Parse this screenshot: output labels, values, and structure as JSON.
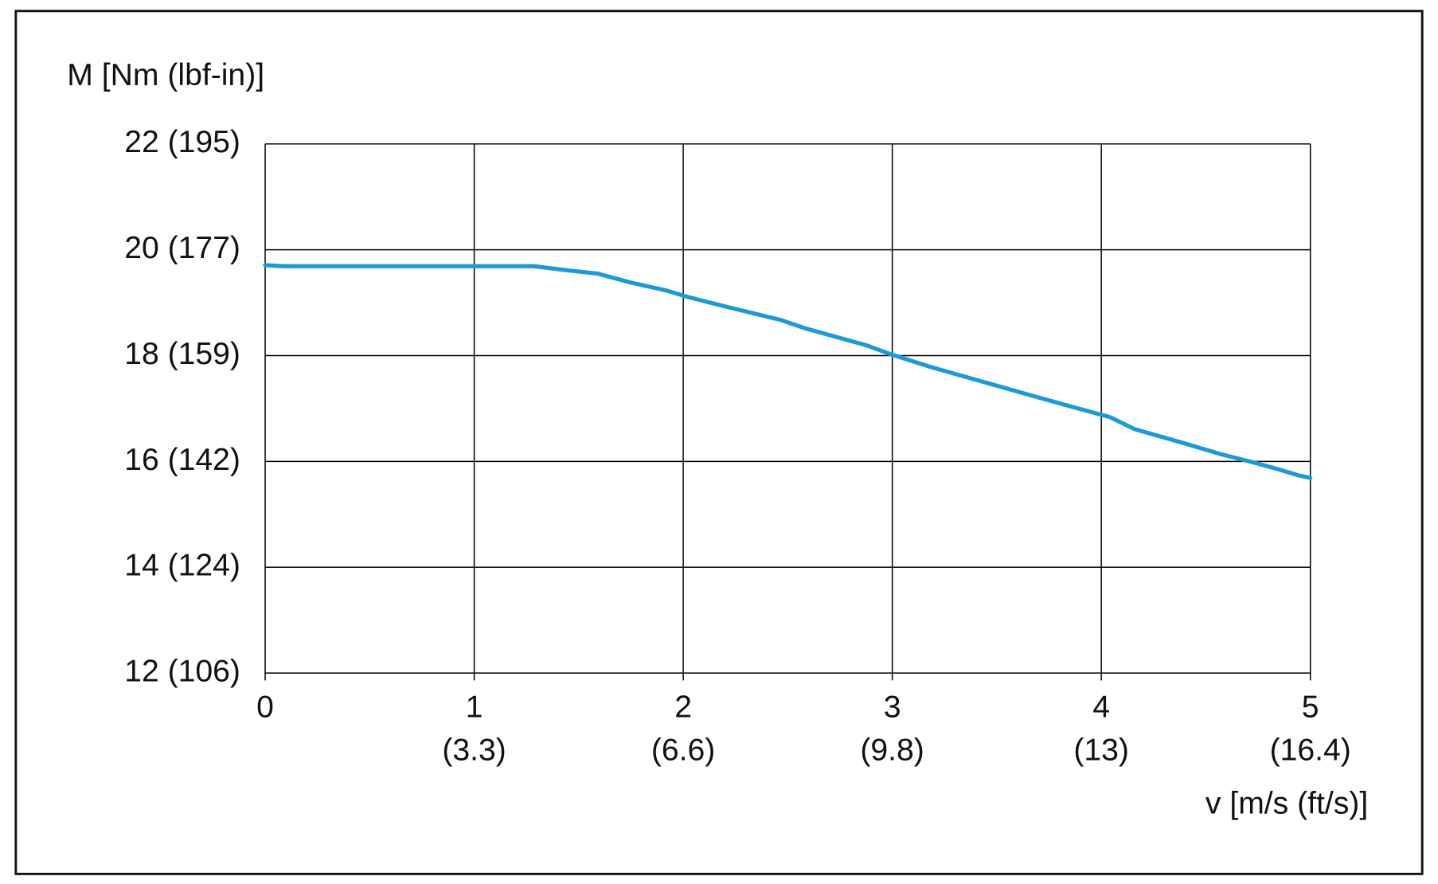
{
  "chart_data": {
    "type": "line",
    "y_label": "M [Nm (lbf-in)]",
    "x_label": "v [m/s (ft/s)]",
    "x": [
      0,
      0.09,
      1.285,
      1.43,
      1.59,
      1.75,
      1.92,
      2.02,
      2.2,
      2.47,
      2.58,
      2.88,
      2.99,
      3.18,
      3.43,
      3.69,
      3.88,
      4.04,
      4.16,
      4.39,
      4.57,
      4.72,
      4.83,
      4.95,
      5.0
    ],
    "values": [
      19.71,
      19.69,
      19.69,
      19.62,
      19.55,
      19.38,
      19.23,
      19.11,
      18.93,
      18.67,
      18.52,
      18.19,
      18.03,
      17.79,
      17.51,
      17.22,
      17.01,
      16.84,
      16.61,
      16.35,
      16.14,
      15.99,
      15.87,
      15.73,
      15.69
    ],
    "color": "#1b9ad6",
    "xlim": [
      0,
      5
    ],
    "xticks": [
      0,
      1,
      2,
      3,
      4,
      5
    ],
    "x_secondary_labels": [
      null,
      "(3.3)",
      "(6.6)",
      "(9.8)",
      "(13)",
      "(16.4)"
    ],
    "ylim": [
      12,
      22
    ],
    "yticks": [
      {
        "value": 12,
        "label": "12 (106)"
      },
      {
        "value": 14,
        "label": "14 (124)"
      },
      {
        "value": 16,
        "label": "16 (142)"
      },
      {
        "value": 18,
        "label": "18 (159)"
      },
      {
        "value": 20,
        "label": "20 (177)"
      },
      {
        "value": 22,
        "label": "22 (195)"
      }
    ],
    "grid": true
  }
}
